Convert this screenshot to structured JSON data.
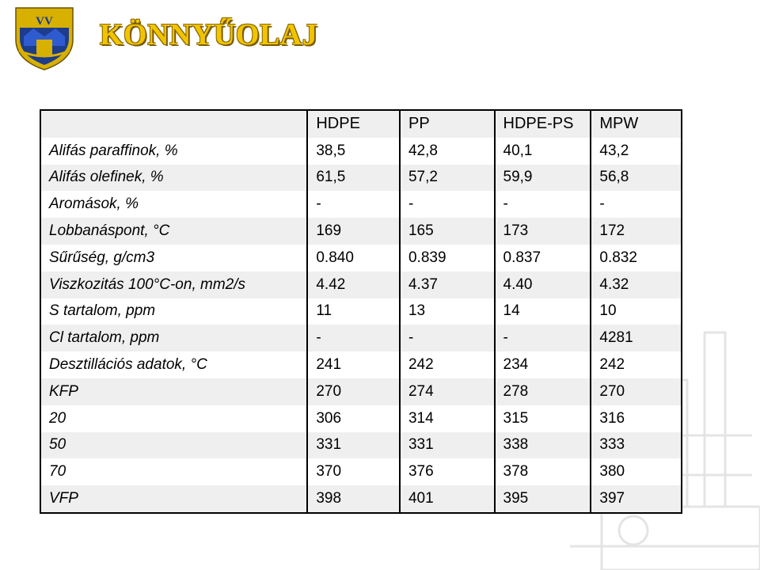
{
  "header": {
    "title": "KÖNNYŰOLAJ",
    "logo_text": "VV",
    "logo_icon": "university-crest-icon"
  },
  "colors": {
    "title": "#f2c400",
    "logo_blue": "#1c3c8c",
    "logo_gold": "#d8b000",
    "table_stripe": "#efefef"
  },
  "table": {
    "columns": [
      "",
      "HDPE",
      "PP",
      "HDPE-PS",
      "MPW"
    ],
    "rows": [
      {
        "label": "Alifás paraffinok, %",
        "values": [
          "38,5",
          "42,8",
          "40,1",
          "43,2"
        ]
      },
      {
        "label": "Alifás olefinek, %",
        "values": [
          "61,5",
          "57,2",
          "59,9",
          "56,8"
        ]
      },
      {
        "label": "Aromások, %",
        "values": [
          "-",
          "-",
          "-",
          "-"
        ]
      },
      {
        "label": "Lobbanáspont, °C",
        "values": [
          "169",
          "165",
          "173",
          "172"
        ]
      },
      {
        "label": "Sűrűség, g/cm3",
        "values": [
          "0.840",
          "0.839",
          "0.837",
          "0.832"
        ]
      },
      {
        "label": "Viszkozitás 100°C-on, mm2/s",
        "values": [
          "4.42",
          "4.37",
          "4.40",
          "4.32"
        ]
      },
      {
        "label": "S tartalom, ppm",
        "values": [
          "11",
          "13",
          "14",
          "10"
        ]
      },
      {
        "label": "Cl tartalom, ppm",
        "values": [
          "-",
          "-",
          "-",
          "4281"
        ]
      },
      {
        "label": "Desztillációs adatok, °C",
        "values": [
          "241",
          "242",
          "234",
          "242"
        ]
      },
      {
        "label": "KFP",
        "values": [
          "270",
          "274",
          "278",
          "270"
        ]
      },
      {
        "label": "20",
        "values": [
          "306",
          "314",
          "315",
          "316"
        ]
      },
      {
        "label": "50",
        "values": [
          "331",
          "331",
          "338",
          "333"
        ]
      },
      {
        "label": "70",
        "values": [
          "370",
          "376",
          "378",
          "380"
        ]
      },
      {
        "label": "VFP",
        "values": [
          "398",
          "401",
          "395",
          "397"
        ]
      }
    ]
  }
}
